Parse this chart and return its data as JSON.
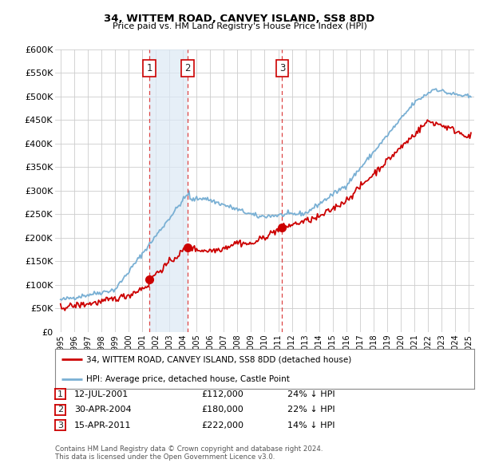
{
  "title": "34, WITTEM ROAD, CANVEY ISLAND, SS8 8DD",
  "subtitle": "Price paid vs. HM Land Registry's House Price Index (HPI)",
  "legend_line1": "34, WITTEM ROAD, CANVEY ISLAND, SS8 8DD (detached house)",
  "legend_line2": "HPI: Average price, detached house, Castle Point",
  "transactions": [
    {
      "label": "1",
      "date": "12-JUL-2001",
      "year": 2001.53,
      "price": 112000,
      "pct": "24% ↓ HPI"
    },
    {
      "label": "2",
      "date": "30-APR-2004",
      "year": 2004.33,
      "price": 180000,
      "pct": "22% ↓ HPI"
    },
    {
      "label": "3",
      "date": "15-APR-2011",
      "year": 2011.29,
      "price": 222000,
      "pct": "14% ↓ HPI"
    }
  ],
  "footer_line1": "Contains HM Land Registry data © Crown copyright and database right 2024.",
  "footer_line2": "This data is licensed under the Open Government Licence v3.0.",
  "ylim": [
    0,
    600000
  ],
  "yticks": [
    0,
    50000,
    100000,
    150000,
    200000,
    250000,
    300000,
    350000,
    400000,
    450000,
    500000,
    550000,
    600000
  ],
  "xlim_start": 1994.6,
  "xlim_end": 2025.4,
  "red_color": "#cc0000",
  "blue_color": "#7ab0d4",
  "shade_color": "#dce9f5",
  "dashed_color": "#dd4444",
  "background_color": "#ffffff",
  "grid_color": "#cccccc"
}
